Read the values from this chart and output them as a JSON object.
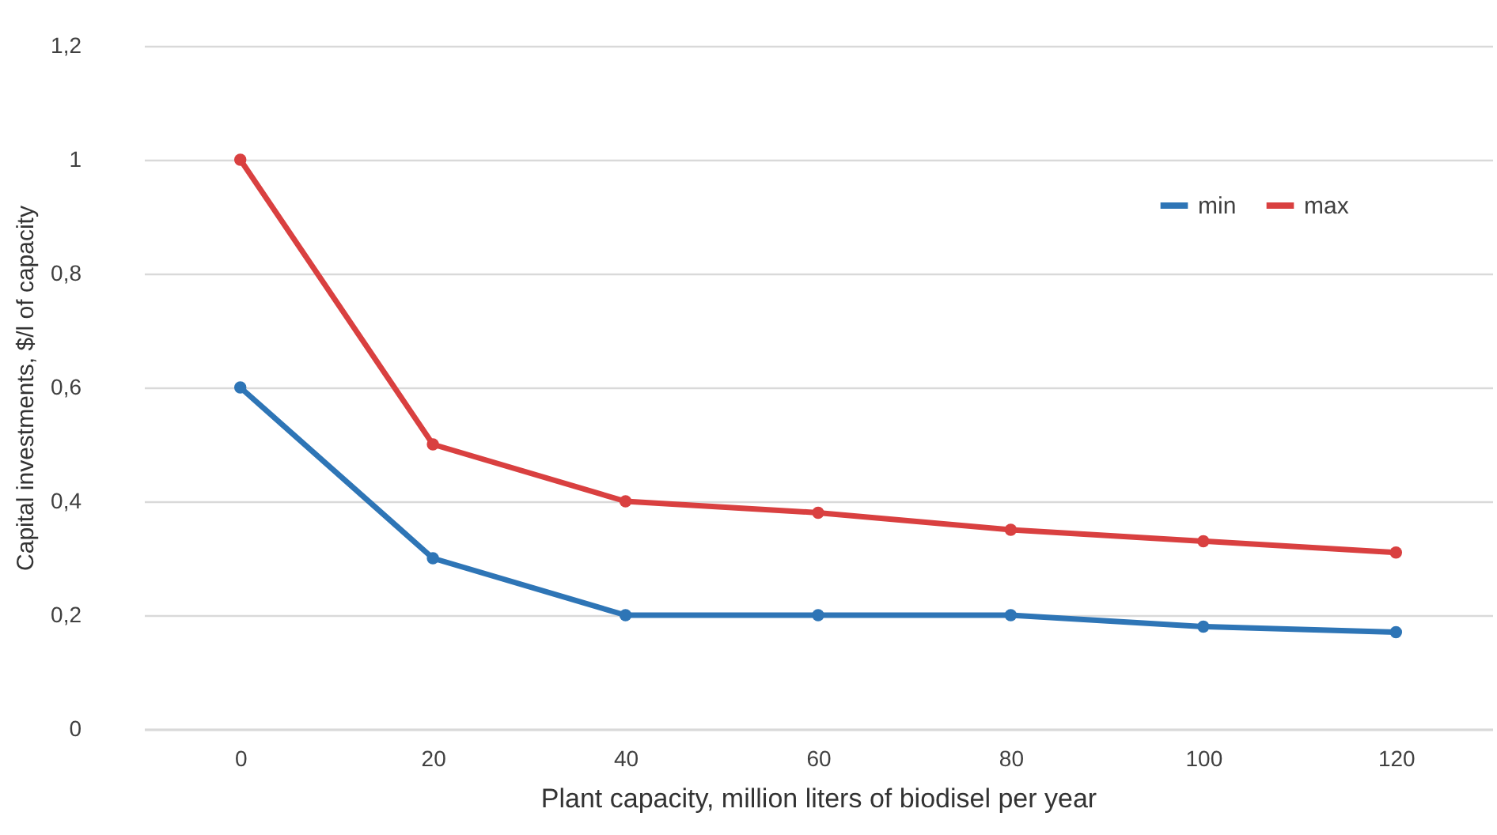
{
  "chart_data": {
    "type": "line",
    "xlabel": "Plant capacity, million liters of biodisel per year",
    "ylabel": "Capital investments, $/l of capacity",
    "categories": [
      "0",
      "20",
      "40",
      "60",
      "80",
      "100",
      "120"
    ],
    "series": [
      {
        "name": "min",
        "color": "#2e75b6",
        "values": [
          0.6,
          0.3,
          0.2,
          0.2,
          0.2,
          0.18,
          0.17
        ]
      },
      {
        "name": "max",
        "color": "#d94040",
        "values": [
          1.0,
          0.5,
          0.4,
          0.38,
          0.35,
          0.33,
          0.31
        ]
      }
    ],
    "ylim": [
      0,
      1.2
    ],
    "yticks": [
      0,
      {
        "value": 0.2,
        "label": "0,2"
      },
      {
        "value": 0.4,
        "label": "0,4"
      },
      {
        "value": 0.6,
        "label": "0,6"
      },
      {
        "value": 0.8,
        "label": "0,8"
      },
      1,
      {
        "value": 1.2,
        "label": "1,2"
      }
    ],
    "grid": "y",
    "legend": "top right",
    "marker": "circle",
    "line_style": "solid"
  }
}
